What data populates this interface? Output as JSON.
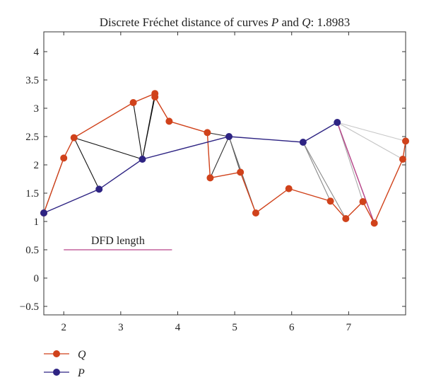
{
  "chart_data": {
    "type": "line",
    "title": {
      "prefix": "Discrete Fréchet distance of curves ",
      "p": "P",
      "and": " and ",
      "q": "Q",
      "suffix": ": 1.8983"
    },
    "xlabel": "",
    "ylabel": "",
    "xlim": [
      1.65,
      8.0
    ],
    "ylim": [
      -0.65,
      4.35
    ],
    "xticks": [
      2,
      3,
      4,
      5,
      6,
      7
    ],
    "yticks": [
      -0.5,
      0,
      0.5,
      1,
      1.5,
      2,
      2.5,
      3,
      3.5,
      4
    ],
    "ytick_labels": [
      "−0.5",
      "0",
      "0.5",
      "1",
      "1.5",
      "2",
      "2.5",
      "3",
      "3.5",
      "4"
    ],
    "grid": false,
    "legend_placement": "bottom-left, below plot",
    "series": [
      {
        "name": "Q",
        "color": "#d0421b",
        "x": [
          1.65,
          2.0,
          2.18,
          3.22,
          3.6,
          3.6,
          3.85,
          4.52,
          4.57,
          5.1,
          5.37,
          5.95,
          6.68,
          6.95,
          7.25,
          7.45,
          7.95,
          8.0
        ],
        "y": [
          1.15,
          2.12,
          2.48,
          3.1,
          3.26,
          3.2,
          2.77,
          2.57,
          1.77,
          1.87,
          1.15,
          1.58,
          1.36,
          1.05,
          1.35,
          0.97,
          2.1,
          2.42
        ]
      },
      {
        "name": "P",
        "color": "#2e2483",
        "x": [
          1.65,
          2.62,
          3.38,
          4.9,
          6.2,
          6.8
        ],
        "y": [
          1.15,
          1.57,
          2.1,
          2.5,
          2.4,
          2.75
        ]
      }
    ],
    "coupling_lines": [
      {
        "p": 0,
        "q": 0,
        "color": "#111111"
      },
      {
        "p": 0,
        "q": 1,
        "color": "#111111"
      },
      {
        "p": 1,
        "q": 2,
        "color": "#111111"
      },
      {
        "p": 2,
        "q": 2,
        "color": "#111111"
      },
      {
        "p": 2,
        "q": 3,
        "color": "#111111"
      },
      {
        "p": 2,
        "q": 4,
        "color": "#111111"
      },
      {
        "p": 2,
        "q": 5,
        "color": "#111111"
      },
      {
        "p": 3,
        "q": 7,
        "color": "#333333"
      },
      {
        "p": 3,
        "q": 8,
        "color": "#333333"
      },
      {
        "p": 3,
        "q": 9,
        "color": "#555555"
      },
      {
        "p": 3,
        "q": 10,
        "color": "#666666"
      },
      {
        "p": 4,
        "q": 12,
        "color": "#888888"
      },
      {
        "p": 4,
        "q": 13,
        "color": "#8a8a8a"
      },
      {
        "p": 5,
        "q": 14,
        "color": "#aaaaaa"
      },
      {
        "p": 5,
        "q": 15,
        "color": "#aaaaaa"
      },
      {
        "p": 5,
        "q": 16,
        "color": "#c4c4c4"
      },
      {
        "p": 5,
        "q": 17,
        "color": "#c8c8c8"
      }
    ],
    "dfd_line": {
      "p": 5,
      "q": 15,
      "color": "#b8458a"
    },
    "annotation": {
      "label": "DFD length",
      "color": "#b8458a",
      "x0": 2.0,
      "x1": 3.9,
      "y": 0.5
    }
  },
  "legend": {
    "q_label": "Q",
    "p_label": "P"
  }
}
